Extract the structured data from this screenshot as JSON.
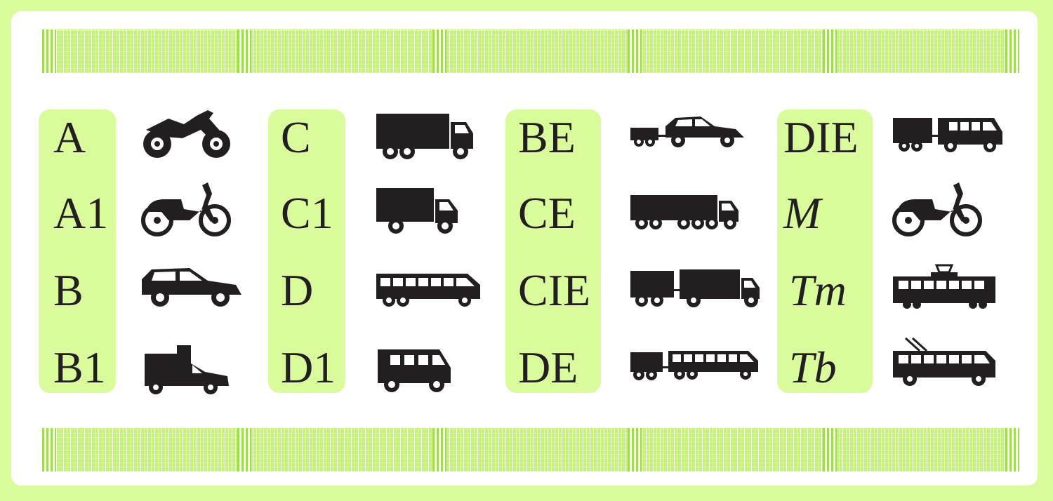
{
  "columns": [
    {
      "labels": [
        "A",
        "A1",
        "B",
        "B1"
      ],
      "vehicles": [
        "motorcycle-icon",
        "moped-icon",
        "car-icon",
        "light-truck-icon"
      ]
    },
    {
      "labels": [
        "C",
        "C1",
        "D",
        "D1"
      ],
      "vehicles": [
        "truck-icon",
        "small-truck-icon",
        "bus-icon",
        "minibus-icon"
      ]
    },
    {
      "labels": [
        "BE",
        "CE",
        "CIE",
        "DE"
      ],
      "vehicles": [
        "car-trailer-icon",
        "semi-trailer-icon",
        "truck-trailer-icon",
        "bus-trailer-icon"
      ]
    },
    {
      "labels": [
        "DIE",
        "M",
        "Tm",
        "Tb"
      ],
      "vehicles": [
        "minibus-trailer-icon",
        "moped-icon",
        "tram-icon",
        "trolleybus-icon"
      ]
    }
  ],
  "colors": {
    "background": "#d9fb9c",
    "card": "#ffffff",
    "highlight": "#d9fb9c",
    "ink": "#231f20",
    "band": "#c6f07e"
  }
}
